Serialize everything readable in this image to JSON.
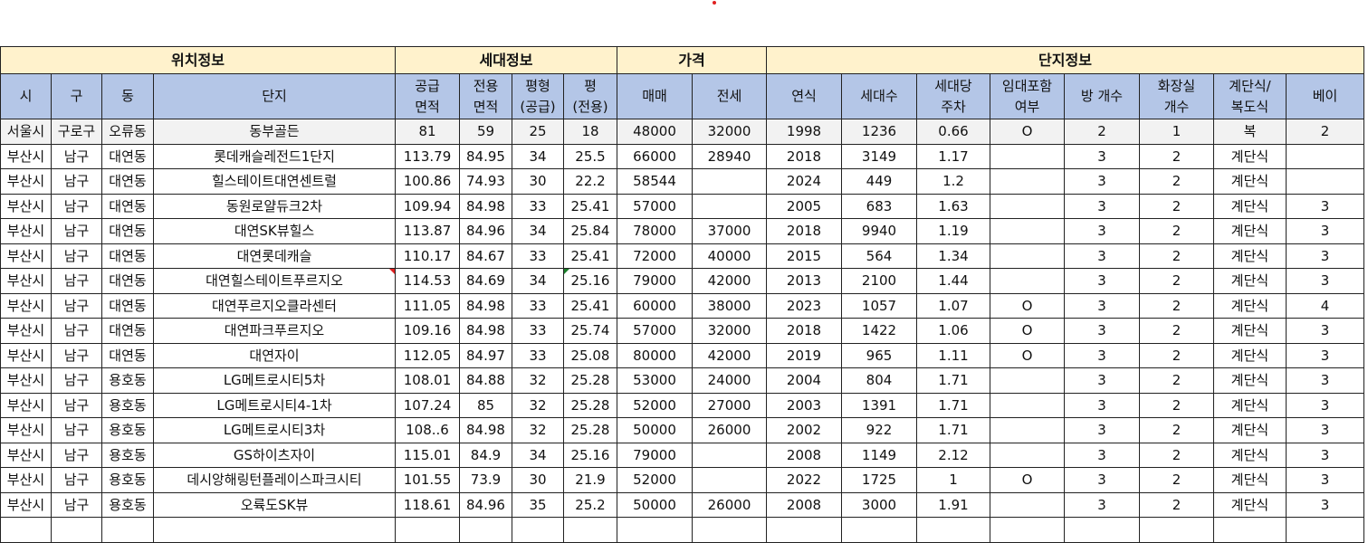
{
  "groups": [
    "위치정보",
    "세대정보",
    "가격",
    "단지정보"
  ],
  "headers": [
    "시",
    "구",
    "동",
    "단지",
    "공급\n면적",
    "전용\n면적",
    "평형\n(공급)",
    "평\n(전용)",
    "매매",
    "전세",
    "연식",
    "세대수",
    "세대당\n주차",
    "임대포함\n여부",
    "방 개수",
    "화장실\n개수",
    "계단식/\n복도식",
    "베이"
  ],
  "rows": [
    [
      "서울시",
      "구로구",
      "오류동",
      "동부골든",
      "81",
      "59",
      "25",
      "18",
      "48000",
      "32000",
      "1998",
      "1236",
      "0.66",
      "O",
      "2",
      "1",
      "복",
      "2"
    ],
    [
      "부산시",
      "남구",
      "대연동",
      "롯데캐슬레전드1단지",
      "113.79",
      "84.95",
      "34",
      "25.5",
      "66000",
      "28940",
      "2018",
      "3149",
      "1.17",
      "",
      "3",
      "2",
      "계단식",
      ""
    ],
    [
      "부산시",
      "남구",
      "대연동",
      "힐스테이트대연센트럴",
      "100.86",
      "74.93",
      "30",
      "22.2",
      "58544",
      "",
      "2024",
      "449",
      "1.2",
      "",
      "3",
      "2",
      "계단식",
      ""
    ],
    [
      "부산시",
      "남구",
      "대연동",
      "동원로얄듀크2차",
      "109.94",
      "84.98",
      "33",
      "25.41",
      "57000",
      "",
      "2005",
      "683",
      "1.63",
      "",
      "3",
      "2",
      "계단식",
      "3"
    ],
    [
      "부산시",
      "남구",
      "대연동",
      "대연SK뷰힐스",
      "113.87",
      "84.96",
      "34",
      "25.84",
      "78000",
      "37000",
      "2018",
      "9940",
      "1.19",
      "",
      "3",
      "2",
      "계단식",
      "3"
    ],
    [
      "부산시",
      "남구",
      "대연동",
      "대연롯데캐슬",
      "110.17",
      "84.67",
      "33",
      "25.41",
      "72000",
      "40000",
      "2015",
      "564",
      "1.34",
      "",
      "3",
      "2",
      "계단식",
      "3"
    ],
    [
      "부산시",
      "남구",
      "대연동",
      "대연힐스테이트푸르지오",
      "114.53",
      "84.69",
      "34",
      "25.16",
      "79000",
      "42000",
      "2013",
      "2100",
      "1.44",
      "",
      "3",
      "2",
      "계단식",
      "3"
    ],
    [
      "부산시",
      "남구",
      "대연동",
      "대연푸르지오클라센터",
      "111.05",
      "84.98",
      "33",
      "25.41",
      "60000",
      "38000",
      "2023",
      "1057",
      "1.07",
      "O",
      "3",
      "2",
      "계단식",
      "4"
    ],
    [
      "부산시",
      "남구",
      "대연동",
      "대연파크푸르지오",
      "109.16",
      "84.98",
      "33",
      "25.74",
      "57000",
      "32000",
      "2018",
      "1422",
      "1.06",
      "O",
      "3",
      "2",
      "계단식",
      "3"
    ],
    [
      "부산시",
      "남구",
      "대연동",
      "대연자이",
      "112.05",
      "84.97",
      "33",
      "25.08",
      "80000",
      "42000",
      "2019",
      "965",
      "1.11",
      "O",
      "3",
      "2",
      "계단식",
      "3"
    ],
    [
      "부산시",
      "남구",
      "용호동",
      "LG메트로시티5차",
      "108.01",
      "84.88",
      "32",
      "25.28",
      "53000",
      "24000",
      "2004",
      "804",
      "1.71",
      "",
      "3",
      "2",
      "계단식",
      "3"
    ],
    [
      "부산시",
      "남구",
      "용호동",
      "LG메트로시티4-1차",
      "107.24",
      "85",
      "32",
      "25.28",
      "52000",
      "27000",
      "2003",
      "1391",
      "1.71",
      "",
      "3",
      "2",
      "계단식",
      "3"
    ],
    [
      "부산시",
      "남구",
      "용호동",
      "LG메트로시티3차",
      "108..6",
      "84.98",
      "32",
      "25.28",
      "50000",
      "26000",
      "2002",
      "922",
      "1.71",
      "",
      "3",
      "2",
      "계단식",
      "3"
    ],
    [
      "부산시",
      "남구",
      "용호동",
      "GS하이츠자이",
      "115.01",
      "84.9",
      "34",
      "25.16",
      "79000",
      "",
      "2008",
      "1149",
      "2.12",
      "",
      "3",
      "2",
      "계단식",
      "3"
    ],
    [
      "부산시",
      "남구",
      "용호동",
      "데시앙해링턴플레이스파크시티",
      "101.55",
      "73.9",
      "30",
      "21.9",
      "52000",
      "",
      "2022",
      "1725",
      "1",
      "O",
      "3",
      "2",
      "계단식",
      "3"
    ],
    [
      "부산시",
      "남구",
      "용호동",
      "오륙도SK뷰",
      "118.61",
      "84.96",
      "35",
      "25.2",
      "50000",
      "26000",
      "2008",
      "3000",
      "1.91",
      "",
      "3",
      "2",
      "계단식",
      "3"
    ]
  ],
  "colors": {
    "group_header": "#fff2cc",
    "column_header": "#b4c6e7",
    "first_row": "#f2f2f2"
  }
}
